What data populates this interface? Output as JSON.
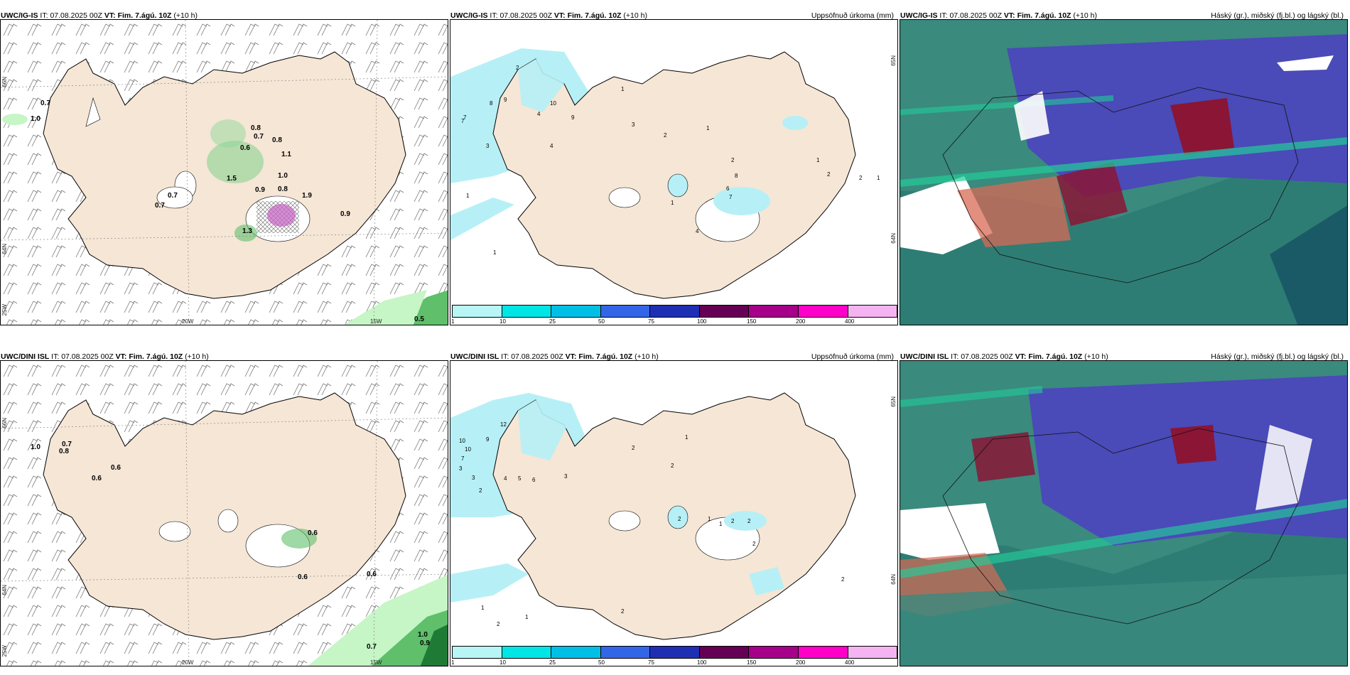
{
  "panels": [
    {
      "model": "UWC/IG-IS",
      "it_label": "IT:",
      "it_value": "07.08.2025 00Z",
      "vt_label": "VT:",
      "vt_value": "Fim. 7.ágú. 10Z",
      "lead": "(+10 h)",
      "right_title": "",
      "grid_labels": {
        "lat1": "66N",
        "lat2": "64N",
        "lon_w": "25W",
        "lon1": "20W",
        "lon2": "15W"
      },
      "values": [
        "0.7",
        "1.0",
        "0.8",
        "0.7",
        "0.6",
        "0.8",
        "1.1",
        "1.0",
        "1.5",
        "0.9",
        "0.8",
        "0.7",
        "0.7",
        "1.3",
        "1.9",
        "0.9",
        "0.5"
      ]
    },
    {
      "model": "UWC/IG-IS",
      "it_label": "IT:",
      "it_value": "07.08.2025 00Z",
      "vt_label": "VT:",
      "vt_value": "Fim. 7.ágú. 10Z",
      "lead": "(+10 h)",
      "right_title": "Uppsöfnuð úrkoma (mm)",
      "grid_labels": {
        "lat1": "65N",
        "lat2": "64N"
      },
      "values": [
        "2",
        "8",
        "7",
        "3",
        "9",
        "4",
        "10",
        "9",
        "7",
        "4",
        "1",
        "1",
        "1",
        "3",
        "2",
        "1",
        "2",
        "8",
        "6",
        "7",
        "1",
        "1",
        "2",
        "2",
        "4",
        "1"
      ]
    },
    {
      "model": "UWC/IG-IS",
      "it_label": "IT:",
      "it_value": "07.08.2025 00Z",
      "vt_label": "VT:",
      "vt_value": "Fim. 7.ágú. 10Z",
      "lead": "(+10 h)",
      "right_title": "Háský (gr.), miðský (fj.bl.) og lágský (bl.)",
      "grid_labels": {},
      "values": []
    },
    {
      "model": "UWC/DINI ISL",
      "it_label": "IT:",
      "it_value": "07.08.2025 00Z",
      "vt_label": "VT:",
      "vt_value": "Fim. 7.ágú. 10Z",
      "lead": "(+10 h)",
      "right_title": "",
      "grid_labels": {
        "lat1": "66N",
        "lat2": "64N",
        "lon_w": "25W",
        "lon1": "20W",
        "lon2": "15W"
      },
      "values": [
        "1.0",
        "0.7",
        "0.8",
        "0.6",
        "0.6",
        "0.6",
        "0.6",
        "0.6",
        "0.7",
        "1.0",
        "0.9"
      ]
    },
    {
      "model": "UWC/DINI ISL",
      "it_label": "IT:",
      "it_value": "07.08.2025 00Z",
      "vt_label": "VT:",
      "vt_value": "Fim. 7.ágú. 10Z",
      "lead": "(+10 h)",
      "right_title": "Uppsöfnuð úrkoma (mm)",
      "grid_labels": {
        "lat1": "65N",
        "lat2": "64N"
      },
      "values": [
        "12",
        "10",
        "10",
        "9",
        "7",
        "3",
        "3",
        "4",
        "5",
        "6",
        "3",
        "2",
        "2",
        "2",
        "1",
        "2",
        "1",
        "1",
        "2",
        "2",
        "2",
        "2",
        "1",
        "1",
        "2",
        "2"
      ]
    },
    {
      "model": "UWC/DINI ISL",
      "it_label": "IT:",
      "it_value": "07.08.2025 00Z",
      "vt_label": "VT:",
      "vt_value": "Fim. 7.ágú. 10Z",
      "lead": "(+10 h)",
      "right_title": "Háský (gr.), miðský (fj.bl.) og lágský (bl.)",
      "grid_labels": {},
      "values": []
    }
  ],
  "colorbar": {
    "ticks": [
      "1",
      "10",
      "25",
      "50",
      "75",
      "100",
      "150",
      "200",
      "400"
    ],
    "colors": [
      "#b8f6f6",
      "#00e6e6",
      "#00bfe6",
      "#3366e6",
      "#1f2fb3",
      "#660055",
      "#a6008a",
      "#ff00c8",
      "#f5b3f2"
    ]
  },
  "colors": {
    "land": "#f5e6d6",
    "precip_light": "#b6f0f6",
    "wind_green_light": "#c6f5c6",
    "wind_green": "#5fbf6a",
    "wind_green_dark": "#1f7a35",
    "cloud_high": "#22aa88",
    "cloud_mid": "#4a4ab8",
    "cloud_low": "#2e7d74",
    "cloud_dark_red": "#8a1535"
  }
}
